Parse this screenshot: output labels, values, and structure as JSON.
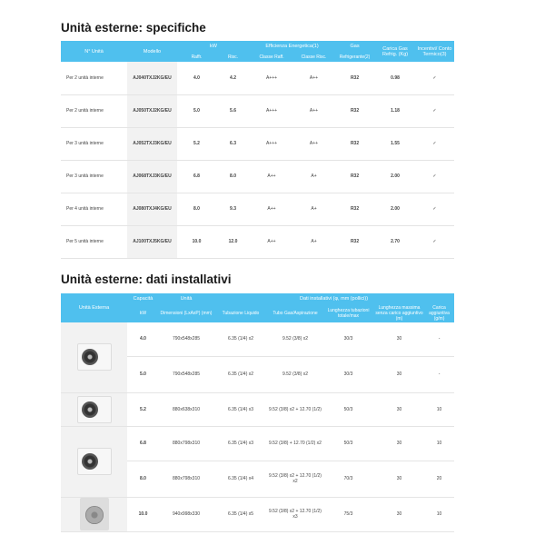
{
  "spec": {
    "title": "Unità esterne: specifiche",
    "headers": {
      "n_unita": "N° Unità",
      "modello": "Modello",
      "kw": "kW",
      "raffr": "Raffr.",
      "risc": "Risc.",
      "efficienza": "Efficienza Energetica(1)",
      "classe_raff": "Classe Raff.",
      "classe_risc": "Classe Risc.",
      "gas": "Gas",
      "refrigerante": "Refrigerante(2)",
      "carica": "Carica Gas Refrig. (Kg)",
      "incentivi": "Incentivi/ Conto Termico(3)"
    },
    "rows": [
      {
        "n": "Per 2 unità interne",
        "model": "AJ040TXJ2KG/EU",
        "raffr": "4.0",
        "risc": "4.2",
        "cr": "A+++",
        "ch": "A++",
        "gas": "R32",
        "carica": "0.98",
        "inc": "✓"
      },
      {
        "n": "Per 2 unità interne",
        "model": "AJ050TXJ2KG/EU",
        "raffr": "5.0",
        "risc": "5.6",
        "cr": "A+++",
        "ch": "A++",
        "gas": "R32",
        "carica": "1.18",
        "inc": "✓"
      },
      {
        "n": "Per 3 unità interne",
        "model": "AJ052TXJ3KG/EU",
        "raffr": "5.2",
        "risc": "6.3",
        "cr": "A+++",
        "ch": "A++",
        "gas": "R32",
        "carica": "1.55",
        "inc": "✓"
      },
      {
        "n": "Per 3 unità interne",
        "model": "AJ068TXJ3KG/EU",
        "raffr": "6.8",
        "risc": "8.0",
        "cr": "A++",
        "ch": "A+",
        "gas": "R32",
        "carica": "2.00",
        "inc": "✓"
      },
      {
        "n": "Per 4 unità interne",
        "model": "AJ080TXJ4KG/EU",
        "raffr": "8.0",
        "risc": "9.3",
        "cr": "A++",
        "ch": "A+",
        "gas": "R32",
        "carica": "2.00",
        "inc": "✓"
      },
      {
        "n": "Per 5 unità interne",
        "model": "AJ100TXJ5KG/EU",
        "raffr": "10.0",
        "risc": "12.0",
        "cr": "A++",
        "ch": "A+",
        "gas": "R32",
        "carica": "2.70",
        "inc": "✓"
      }
    ]
  },
  "install": {
    "title": "Unità esterne: dati installativi",
    "headers": {
      "unita_esterna": "Unità Esterna",
      "capacita": "Capacità",
      "kw": "kW",
      "unita": "Unità",
      "dimensioni": "Dimensioni (LxAxP) (mm)",
      "dati": "Dati installativi (φ, mm (pollici))",
      "liquido": "Tubazione Liquido",
      "gas": "Tubo Gas/Aspirazione",
      "lunghezza": "Lunghezza tubazioni totale/max",
      "lungh_max": "Lunghezza massima senza carico aggiuntivo (m)",
      "carica": "Carica aggiuntiva (g/m)"
    },
    "rows": [
      {
        "cap": "4.0",
        "dim": "790x548x285",
        "liq": "6.35 (1/4) x2",
        "gas": "9.52 (3/8) x2",
        "len": "30/3",
        "max": "30",
        "car": "-"
      },
      {
        "cap": "5.0",
        "dim": "790x548x285",
        "liq": "6.35 (1/4) x2",
        "gas": "9.52 (3/8) x2",
        "len": "30/3",
        "max": "30",
        "car": "-"
      },
      {
        "cap": "5.2",
        "dim": "880x638x310",
        "liq": "6.35 (1/4) x3",
        "gas": "9.52 (3/8) x2 + 12.70 (1/2)",
        "len": "50/3",
        "max": "30",
        "car": "10"
      },
      {
        "cap": "6.8",
        "dim": "880x798x310",
        "liq": "6.35 (1/4) x3",
        "gas": "9.52 (3/8) + 12.70 (1/2) x2",
        "len": "50/3",
        "max": "30",
        "car": "10"
      },
      {
        "cap": "8.0",
        "dim": "880x798x310",
        "liq": "6.35 (1/4) x4",
        "gas": "9.52 (3/8) x2 + 12.70 (1/2) x2",
        "len": "70/3",
        "max": "30",
        "car": "20"
      },
      {
        "cap": "10.0",
        "dim": "940x998x330",
        "liq": "6.35 (1/4) x5",
        "gas": "9.52 (3/8) x2 + 12.70 (1/2) x3",
        "len": "75/3",
        "max": "30",
        "car": "10"
      }
    ]
  }
}
